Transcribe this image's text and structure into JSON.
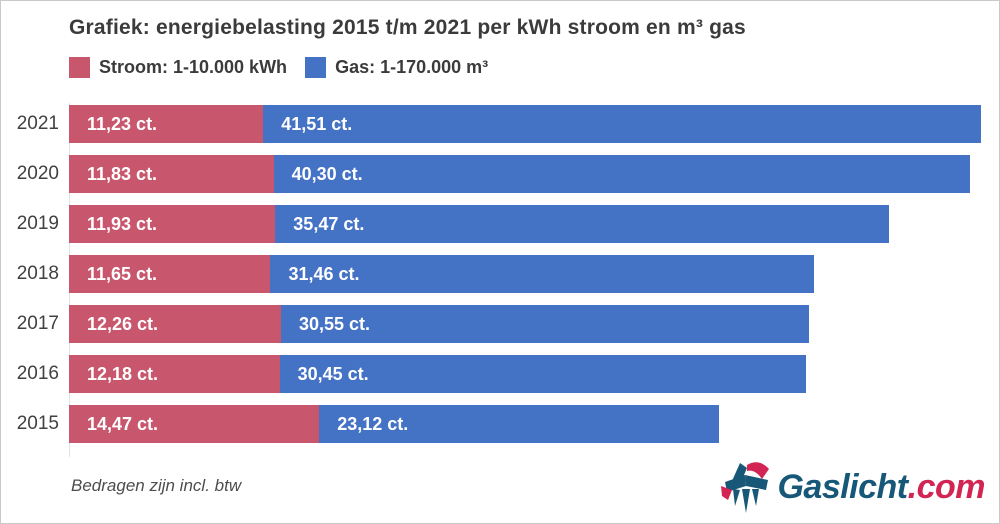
{
  "chart": {
    "title": "Grafiek: energiebelasting 2015 t/m 2021 per kWh stroom en m³ gas",
    "footnote": "Bedragen zijn incl. btw"
  },
  "chart_data": {
    "type": "bar",
    "orientation": "horizontal",
    "stacked": true,
    "unit": "ct.",
    "grid": false,
    "legend_position": "top",
    "categories": [
      "2021",
      "2020",
      "2019",
      "2018",
      "2017",
      "2016",
      "2015"
    ],
    "series": [
      {
        "name": "Stroom: 1-10.000 kWh",
        "color": "#c8566c",
        "values": [
          11.23,
          11.83,
          11.93,
          11.65,
          12.26,
          12.18,
          14.47
        ],
        "labels": [
          "11,23 ct.",
          "11,83 ct.",
          "11,93 ct.",
          "11,65 ct.",
          "12,26 ct.",
          "12,18 ct.",
          "14,47 ct."
        ]
      },
      {
        "name": "Gas: 1-170.000 m³",
        "color": "#4472c4",
        "values": [
          41.51,
          40.3,
          35.47,
          31.46,
          30.55,
          30.45,
          23.12
        ],
        "labels": [
          "41,51 ct.",
          "40,30 ct.",
          "35,47 ct.",
          "31,46 ct.",
          "30,55 ct.",
          "30,45 ct.",
          "23,12 ct."
        ]
      }
    ],
    "xlim": [
      0,
      52.74
    ]
  },
  "logo": {
    "brand": "Gaslicht",
    "tld": ".com"
  },
  "colors": {
    "stroom": "#c8566c",
    "gas": "#4472c4",
    "logo_blue": "#175878",
    "logo_red": "#d22553"
  }
}
